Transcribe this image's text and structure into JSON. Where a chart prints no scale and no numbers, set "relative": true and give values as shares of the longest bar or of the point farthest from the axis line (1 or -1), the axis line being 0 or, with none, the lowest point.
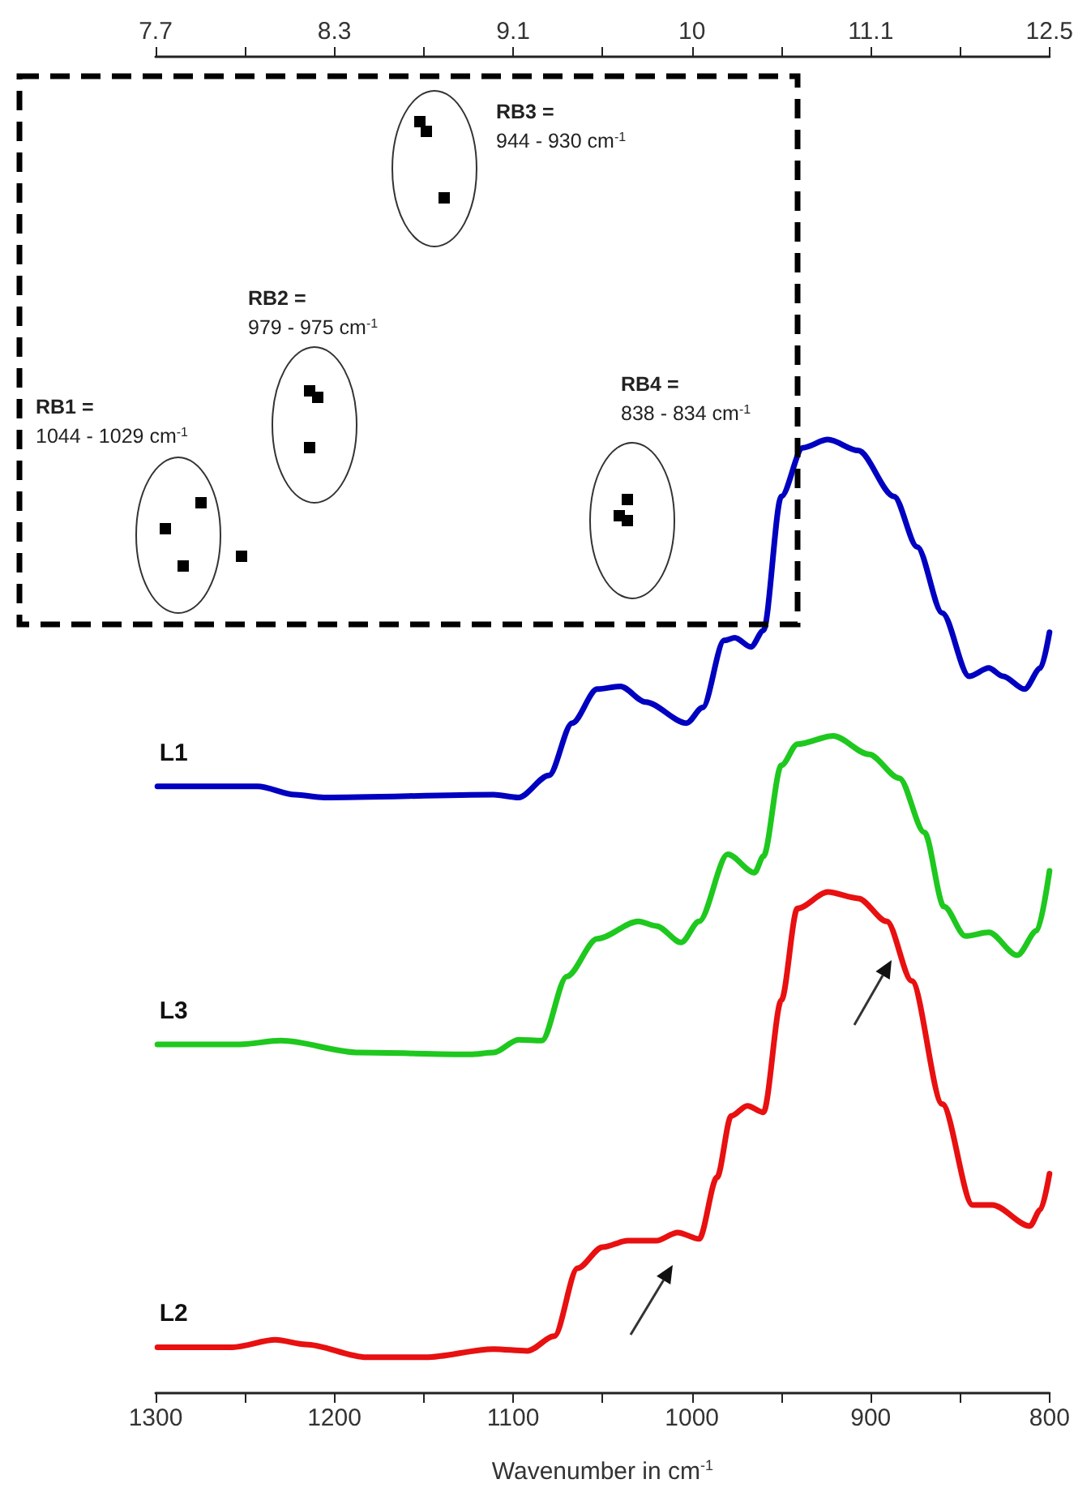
{
  "chart_data": {
    "type": "line",
    "relative": true,
    "xlabel": "Wavenumber in cm$^{-1}$",
    "xlim": [
      1300,
      800
    ],
    "xticks": [
      1300,
      1200,
      1100,
      1000,
      900,
      800
    ],
    "tick_labels": "x",
    "grid": false,
    "legend": false,
    "marker": "none",
    "line_style": "solid",
    "annotations": [
      "RB1 =\n1044 - 1029 cm$^{-1}$",
      "RB2 =\n979 - 975 cm$^{-1}$",
      "RB3 =\n944 - 930 cm$^{-1}$",
      "RB4 =\n838 - 834 cm$^{-1}$",
      "7.7",
      "8.3",
      "9.1",
      "10",
      "11.1",
      "12.5"
    ],
    "series": [
      {
        "name": "L1",
        "color": "#0000c0",
        "x": [
          1299,
          1243,
          1222,
          1206,
          1111,
          1097,
          1080,
          1067,
          1053,
          1040,
          1026,
          1003,
          994,
          982,
          976,
          967,
          960,
          950,
          938,
          924,
          907,
          887,
          874,
          860,
          845,
          834,
          826,
          814,
          805,
          800
        ],
        "values": [
          0.622,
          0.622,
          0.613,
          0.61,
          0.613,
          0.61,
          0.634,
          0.691,
          0.728,
          0.731,
          0.714,
          0.691,
          0.708,
          0.781,
          0.784,
          0.774,
          0.792,
          0.938,
          0.991,
          1.0,
          0.988,
          0.938,
          0.883,
          0.811,
          0.742,
          0.751,
          0.742,
          0.728,
          0.751,
          0.79
        ]
      },
      {
        "name": "L3",
        "color": "#1ec81e",
        "x": [
          1299,
          1253,
          1230,
          1186,
          1124,
          1111,
          1097,
          1084,
          1070,
          1053,
          1030,
          1020,
          1006,
          996,
          980,
          965,
          960,
          950,
          941,
          921,
          901,
          884,
          870,
          859,
          847,
          834,
          818,
          807,
          800
        ],
        "values": [
          0.341,
          0.341,
          0.345,
          0.332,
          0.33,
          0.332,
          0.346,
          0.345,
          0.415,
          0.456,
          0.475,
          0.47,
          0.452,
          0.475,
          0.548,
          0.528,
          0.546,
          0.645,
          0.668,
          0.677,
          0.657,
          0.631,
          0.572,
          0.491,
          0.459,
          0.463,
          0.438,
          0.465,
          0.53
        ]
      },
      {
        "name": "L2",
        "color": "#e81010",
        "x": [
          1299,
          1257,
          1233,
          1216,
          1182,
          1149,
          1111,
          1092,
          1077,
          1064,
          1050,
          1036,
          1020,
          1008,
          996,
          986,
          978,
          969,
          960,
          950,
          941,
          924,
          907,
          891,
          877,
          860,
          843,
          832,
          811,
          805,
          800
        ],
        "values": [
          0.011,
          0.011,
          0.019,
          0.014,
          0.0,
          0.0,
          0.009,
          0.007,
          0.023,
          0.097,
          0.12,
          0.127,
          0.127,
          0.136,
          0.129,
          0.196,
          0.263,
          0.274,
          0.267,
          0.389,
          0.489,
          0.507,
          0.5,
          0.475,
          0.41,
          0.276,
          0.166,
          0.166,
          0.143,
          0.161,
          0.2
        ]
      }
    ]
  }
}
